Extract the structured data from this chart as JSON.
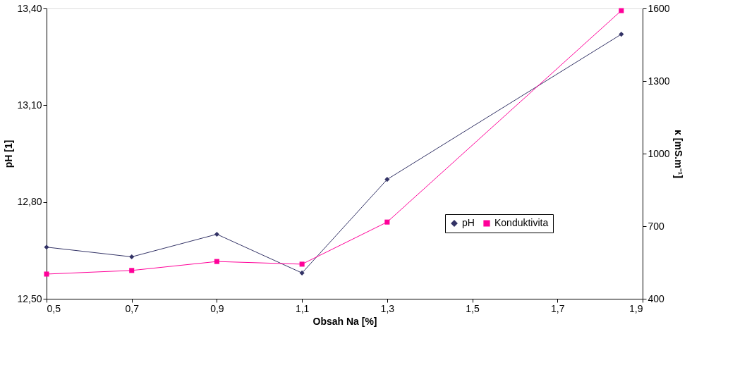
{
  "chart_data": {
    "type": "line",
    "xlabel": "Obsah Na [%]",
    "ylabel": "pH [1]",
    "y2label": "κ [mS.m⁻¹]",
    "x": [
      0.5,
      0.7,
      0.9,
      1.1,
      1.3,
      1.85
    ],
    "series": [
      {
        "name": "pH",
        "color": "#333366",
        "marker": "diamond",
        "values": [
          12.66,
          12.63,
          12.7,
          12.58,
          12.87,
          13.32
        ]
      },
      {
        "name": "Konduktivita",
        "color": "#ff0099",
        "marker": "square",
        "axis": "y2",
        "values": [
          502,
          517,
          554,
          543,
          717,
          1591
        ]
      }
    ],
    "xlim": [
      0.5,
      1.9
    ],
    "xticks": [
      {
        "value": 0.5,
        "label": "0,5"
      },
      {
        "value": 0.7,
        "label": "0,7"
      },
      {
        "value": 0.9,
        "label": "0,9"
      },
      {
        "value": 1.1,
        "label": "1,1"
      },
      {
        "value": 1.3,
        "label": "1,3"
      },
      {
        "value": 1.5,
        "label": "1,5"
      },
      {
        "value": 1.7,
        "label": "1,7"
      },
      {
        "value": 1.9,
        "label": "1,9"
      }
    ],
    "ylim": [
      12.5,
      13.4
    ],
    "yticks": [
      {
        "value": 12.5,
        "label": "12,50"
      },
      {
        "value": 12.8,
        "label": "12,80"
      },
      {
        "value": 13.1,
        "label": "13,10"
      },
      {
        "value": 13.4,
        "label": "13,40"
      }
    ],
    "y2lim": [
      400,
      1600
    ],
    "y2ticks": [
      400,
      700,
      1000,
      1300,
      1600
    ],
    "grid": false,
    "legend": "right",
    "line_style": "solid"
  }
}
